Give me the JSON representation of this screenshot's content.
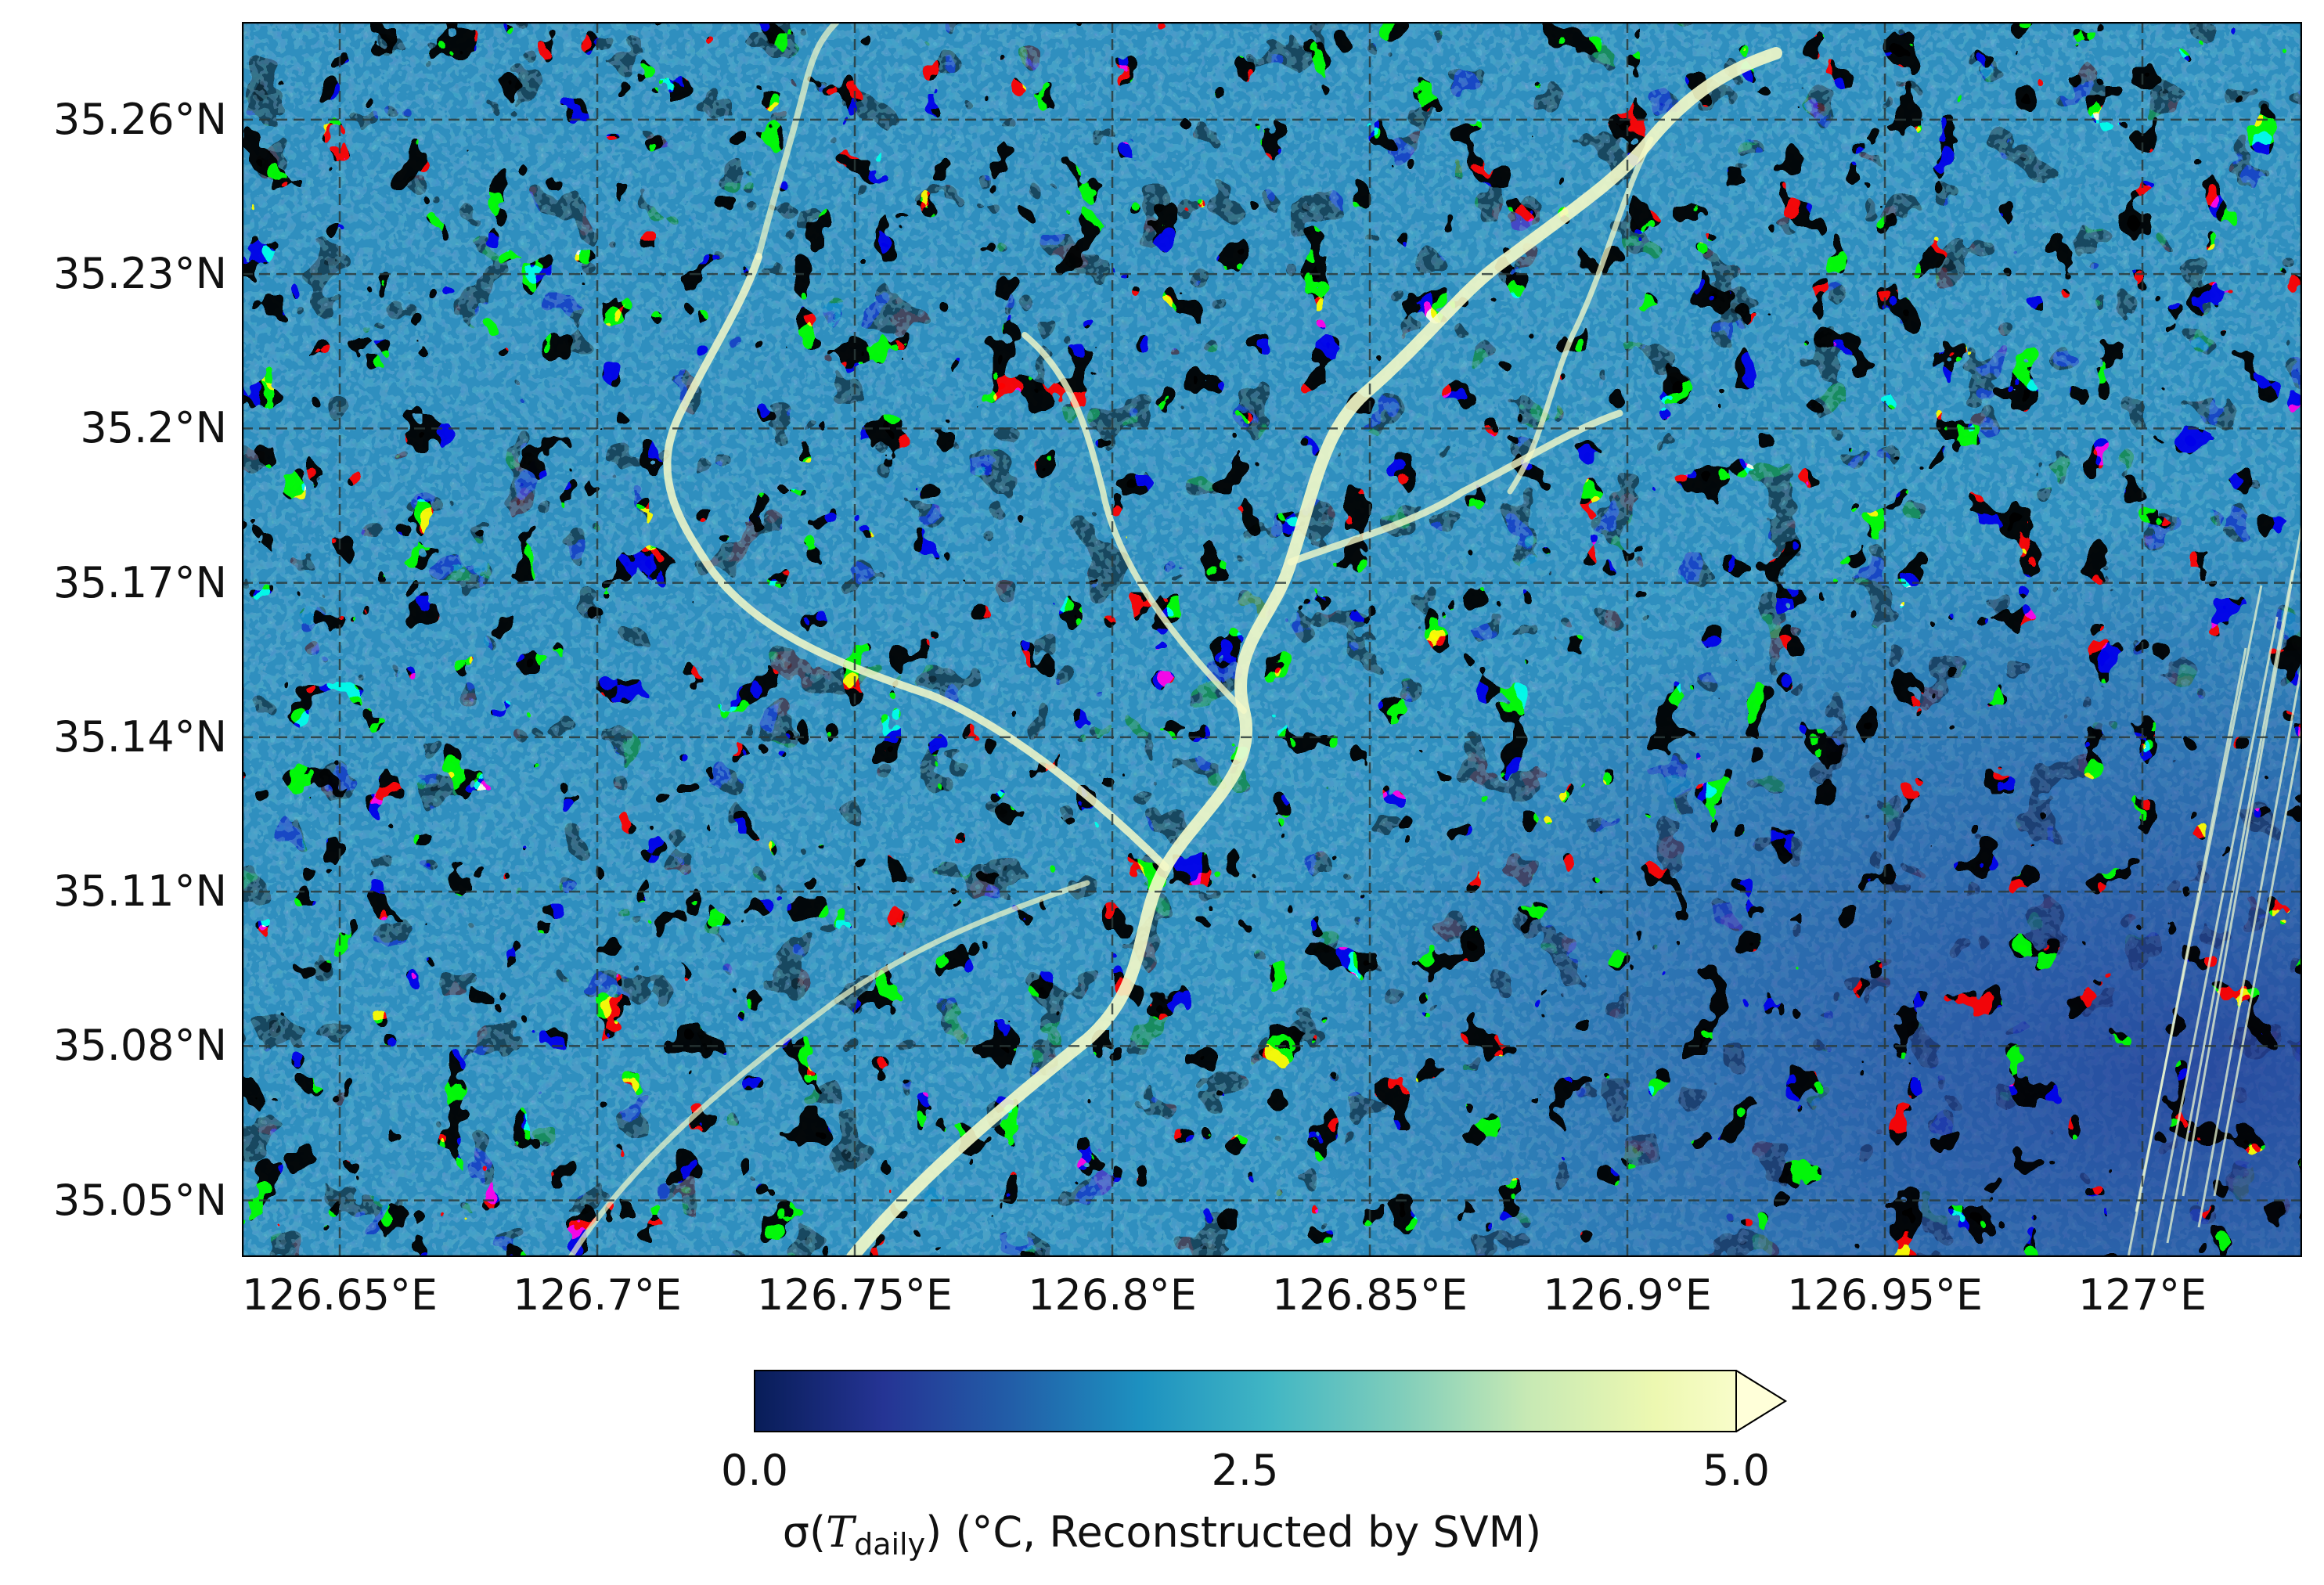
{
  "map": {
    "lat_labels": [
      {
        "label": "35.26°N",
        "value": 35.26
      },
      {
        "label": "35.23°N",
        "value": 35.23
      },
      {
        "label": "35.2°N",
        "value": 35.2
      },
      {
        "label": "35.17°N",
        "value": 35.17
      },
      {
        "label": "35.14°N",
        "value": 35.14
      },
      {
        "label": "35.11°N",
        "value": 35.11
      },
      {
        "label": "35.08°N",
        "value": 35.08
      },
      {
        "label": "35.05°N",
        "value": 35.05
      }
    ],
    "lon_labels": [
      {
        "label": "126.65°E",
        "value": 126.65
      },
      {
        "label": "126.7°E",
        "value": 126.7
      },
      {
        "label": "126.75°E",
        "value": 126.75
      },
      {
        "label": "126.8°E",
        "value": 126.8
      },
      {
        "label": "126.85°E",
        "value": 126.85
      },
      {
        "label": "126.9°E",
        "value": 126.9
      },
      {
        "label": "126.95°E",
        "value": 126.95
      },
      {
        "label": "127°E",
        "value": 127.0
      }
    ],
    "lat_range": [
      35.039,
      35.279
    ],
    "lon_range": [
      126.631,
      127.031
    ],
    "gridlines": "dashed"
  },
  "colorbar": {
    "ticks": [
      "0.0",
      "2.5",
      "5.0"
    ],
    "tick_values": [
      0.0,
      2.5,
      5.0
    ],
    "range": [
      0.0,
      5.0
    ],
    "extend": "max",
    "colormap": "YlGnBu_r",
    "colors": [
      "#081d58",
      "#253494",
      "#225ea8",
      "#1d91c0",
      "#41b6c4",
      "#7fcdbb",
      "#c7e9b4",
      "#edf8b1",
      "#ffffd9"
    ],
    "label_symbol": "σ(",
    "label_T": "T",
    "label_sub": "daily",
    "label_rest": ") (°C, Reconstructed by SVM)"
  }
}
